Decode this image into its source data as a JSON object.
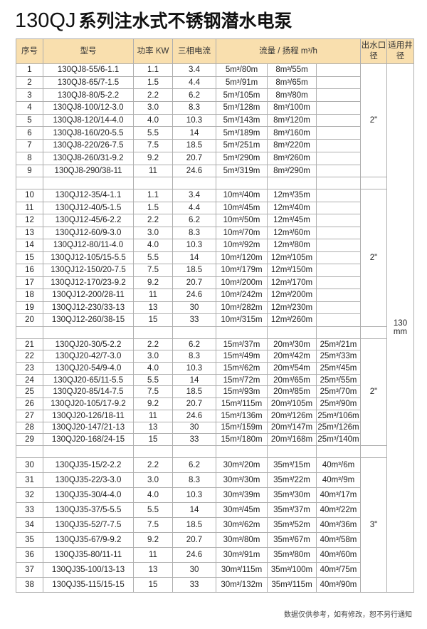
{
  "title": {
    "prefix": "130QJ",
    "text": "系列注水式不锈钢潜水电泵"
  },
  "header": {
    "no": "序号",
    "model": "型号",
    "power": "功率 KW",
    "current": "三相电流",
    "flow_head": "流量 / 扬程 m³/h",
    "outlet": "出水口径",
    "well": "适用井径"
  },
  "well_diameter": "130 mm",
  "groups": [
    {
      "outlet": "2\"",
      "rows": [
        [
          "1",
          "130QJ8-55/6-1.1",
          "1.1",
          "3.4",
          "5m³/80m",
          "8m³/55m",
          ""
        ],
        [
          "2",
          "130QJ8-65/7-1.5",
          "1.5",
          "4.4",
          "5m³/91m",
          "8m³/65m",
          ""
        ],
        [
          "3",
          "130QJ8-80/5-2.2",
          "2.2",
          "6.2",
          "5m³/105m",
          "8m³/80m",
          ""
        ],
        [
          "4",
          "130QJ8-100/12-3.0",
          "3.0",
          "8.3",
          "5m³/128m",
          "8m³/100m",
          ""
        ],
        [
          "5",
          "130QJ8-120/14-4.0",
          "4.0",
          "10.3",
          "5m³/143m",
          "8m³/120m",
          ""
        ],
        [
          "6",
          "130QJ8-160/20-5.5",
          "5.5",
          "14",
          "5m³/189m",
          "8m³/160m",
          ""
        ],
        [
          "7",
          "130QJ8-220/26-7.5",
          "7.5",
          "18.5",
          "5m³/251m",
          "8m³/220m",
          ""
        ],
        [
          "8",
          "130QJ8-260/31-9.2",
          "9.2",
          "20.7",
          "5m³/290m",
          "8m³/260m",
          ""
        ],
        [
          "9",
          "130QJ8-290/38-11",
          "11",
          "24.6",
          "5m³/319m",
          "8m³/290m",
          ""
        ]
      ]
    },
    {
      "outlet": "2\"",
      "rows": [
        [
          "10",
          "130QJ12-35/4-1.1",
          "1.1",
          "3.4",
          "10m³/40m",
          "12m³/35m",
          ""
        ],
        [
          "11",
          "130QJ12-40/5-1.5",
          "1.5",
          "4.4",
          "10m³/45m",
          "12m³/40m",
          ""
        ],
        [
          "12",
          "130QJ12-45/6-2.2",
          "2.2",
          "6.2",
          "10m³/50m",
          "12m³/45m",
          ""
        ],
        [
          "13",
          "130QJ12-60/9-3.0",
          "3.0",
          "8.3",
          "10m³/70m",
          "12m³/60m",
          ""
        ],
        [
          "14",
          "130QJ12-80/11-4.0",
          "4.0",
          "10.3",
          "10m³/92m",
          "12m³/80m",
          ""
        ],
        [
          "15",
          "130QJ12-105/15-5.5",
          "5.5",
          "14",
          "10m³/120m",
          "12m³/105m",
          ""
        ],
        [
          "16",
          "130QJ12-150/20-7.5",
          "7.5",
          "18.5",
          "10m³/179m",
          "12m³/150m",
          ""
        ],
        [
          "17",
          "130QJ12-170/23-9.2",
          "9.2",
          "20.7",
          "10m³/200m",
          "12m³/170m",
          ""
        ],
        [
          "18",
          "130QJ12-200/28-11",
          "11",
          "24.6",
          "10m³/242m",
          "12m³/200m",
          ""
        ],
        [
          "19",
          "130QJ12-230/33-13",
          "13",
          "30",
          "10m³/282m",
          "12m³/230m",
          ""
        ],
        [
          "20",
          "130QJ12-260/38-15",
          "15",
          "33",
          "10m³/315m",
          "12m³/260m",
          ""
        ]
      ]
    },
    {
      "outlet": "2\"",
      "rows": [
        [
          "21",
          "130QJ20-30/5-2.2",
          "2.2",
          "6.2",
          "15m³/37m",
          "20m³/30m",
          "25m³/21m"
        ],
        [
          "22",
          "130QJ20-42/7-3.0",
          "3.0",
          "8.3",
          "15m³/49m",
          "20m³/42m",
          "25m³/33m"
        ],
        [
          "23",
          "130QJ20-54/9-4.0",
          "4.0",
          "10.3",
          "15m³/62m",
          "20m³/54m",
          "25m³/45m"
        ],
        [
          "24",
          "130QJ20-65/11-5.5",
          "5.5",
          "14",
          "15m³/72m",
          "20m³/65m",
          "25m³/55m"
        ],
        [
          "25",
          "130QJ20-85/14-7.5",
          "7.5",
          "18.5",
          "15m³/93m",
          "20m³/85m",
          "25m³/70m"
        ],
        [
          "26",
          "130QJ20-105/17-9.2",
          "9.2",
          "20.7",
          "15m³/115m",
          "20m³/105m",
          "25m³/90m"
        ],
        [
          "27",
          "130QJ20-126/18-11",
          "11",
          "24.6",
          "15m³/136m",
          "20m³/126m",
          "25m³/106m"
        ],
        [
          "28",
          "130QJ20-147/21-13",
          "13",
          "30",
          "15m³/159m",
          "20m³/147m",
          "25m³/126m"
        ],
        [
          "29",
          "130QJ20-168/24-15",
          "15",
          "33",
          "15m³/180m",
          "20m³/168m",
          "25m³/140m"
        ]
      ]
    },
    {
      "outlet": "3\"",
      "rows": [
        [
          "30",
          "130QJ35-15/2-2.2",
          "2.2",
          "6.2",
          "30m³/20m",
          "35m³/15m",
          "40m³/6m"
        ],
        [
          "31",
          "130QJ35-22/3-3.0",
          "3.0",
          "8.3",
          "30m³/30m",
          "35m³/22m",
          "40m³/9m"
        ],
        [
          "32",
          "130QJ35-30/4-4.0",
          "4.0",
          "10.3",
          "30m³/39m",
          "35m³/30m",
          "40m³/17m"
        ],
        [
          "33",
          "130QJ35-37/5-5.5",
          "5.5",
          "14",
          "30m³/45m",
          "35m³/37m",
          "40m³/22m"
        ],
        [
          "34",
          "130QJ35-52/7-7.5",
          "7.5",
          "18.5",
          "30m³/62m",
          "35m³/52m",
          "40m³/36m"
        ],
        [
          "35",
          "130QJ35-67/9-9.2",
          "9.2",
          "20.7",
          "30m³/80m",
          "35m³/67m",
          "40m³/58m"
        ],
        [
          "36",
          "130QJ35-80/11-11",
          "11",
          "24.6",
          "30m³/91m",
          "35m³/80m",
          "40m³/60m"
        ],
        [
          "37",
          "130QJ35-100/13-13",
          "13",
          "30",
          "30m³/115m",
          "35m³/100m",
          "40m³/75m"
        ],
        [
          "38",
          "130QJ35-115/15-15",
          "15",
          "33",
          "30m³/132m",
          "35m³/115m",
          "40m³/90m"
        ]
      ]
    }
  ],
  "footnote": "数据仅供参考，如有修改，恕不另行通知",
  "colors": {
    "header_bg": "#f9dfae",
    "grid": "#aeaeae"
  }
}
